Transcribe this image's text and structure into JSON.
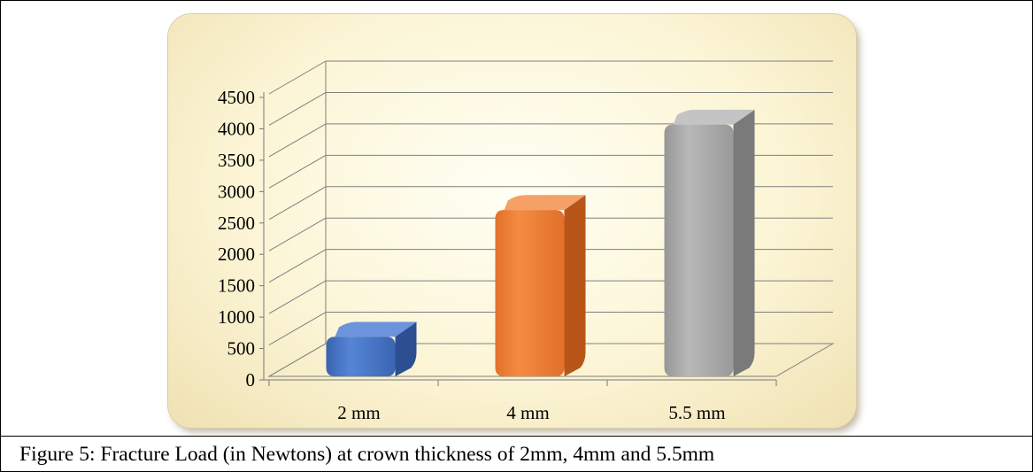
{
  "caption": "Figure 5:   Fracture Load (in Newtons) at crown thickness of 2mm, 4mm and 5.5mm",
  "colors": {
    "bar_blue": "#4472c4",
    "bar_orange": "#ed7d31",
    "bar_gray": "#a5a5a5",
    "panel_bg": "#fcf5d6",
    "grid": "#7f7f7f"
  },
  "chart_data": {
    "type": "bar",
    "style": "3d-column",
    "categories": [
      "2 mm",
      "4 mm",
      "5.5 mm"
    ],
    "values": [
      800,
      2820,
      4180
    ],
    "colors": [
      "#4472c4",
      "#ed7d31",
      "#a5a5a5"
    ],
    "ylim": [
      0,
      4500
    ],
    "yticks": [
      "0",
      "500",
      "1000",
      "1500",
      "2000",
      "2500",
      "3000",
      "3500",
      "4000",
      "4500"
    ],
    "grid": true,
    "legend": "none"
  }
}
